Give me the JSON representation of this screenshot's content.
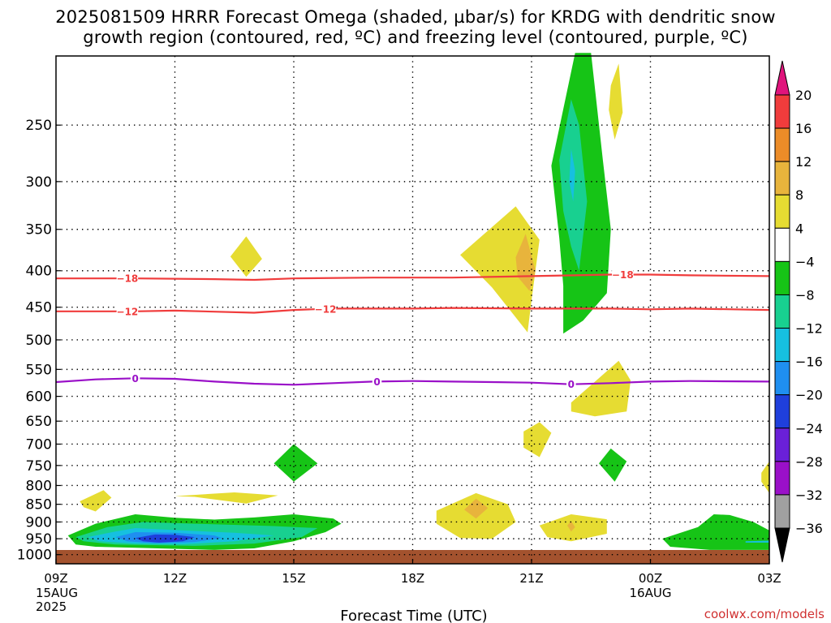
{
  "header": {
    "title_line1": "2025081509 HRRR Forecast Omega (shaded, µbar/s) for KRDG with dendritic snow",
    "title_line2": "growth region (contoured, red, ºC) and freezing level (contoured, purple, ºC)"
  },
  "footer": {
    "credit": "coolwx.com/models"
  },
  "colors": {
    "isotherm_red": "#f03c3c",
    "freezing_purple": "#9a10c8",
    "ground": "#a3522e"
  },
  "chart_data": {
    "type": "heatmap",
    "xlabel": "Forecast Time (UTC)",
    "ylabel": "",
    "x_ticks": [
      {
        "hour": 0,
        "label": "09Z",
        "sub": [
          "15AUG",
          "2025"
        ]
      },
      {
        "hour": 3,
        "label": "12Z",
        "sub": []
      },
      {
        "hour": 6,
        "label": "15Z",
        "sub": []
      },
      {
        "hour": 9,
        "label": "18Z",
        "sub": []
      },
      {
        "hour": 12,
        "label": "21Z",
        "sub": []
      },
      {
        "hour": 15,
        "label": "00Z",
        "sub": [
          "16AUG"
        ]
      },
      {
        "hour": 18,
        "label": "03Z",
        "sub": []
      }
    ],
    "xlim": [
      0,
      18
    ],
    "y_ticks": [
      250,
      300,
      350,
      400,
      450,
      500,
      550,
      600,
      650,
      700,
      750,
      800,
      850,
      900,
      950,
      1000
    ],
    "ylim_hpa": [
      200,
      1030
    ],
    "y_scale": "log-pressure",
    "colorbar": {
      "levels": [
        -36,
        -32,
        -28,
        -24,
        -20,
        -16,
        -12,
        -8,
        -4,
        4,
        8,
        12,
        16,
        20
      ],
      "labels": [
        "20",
        "16",
        "12",
        "8",
        "4",
        "−4",
        "−8",
        "−12",
        "−16",
        "−20",
        "−24",
        "−28",
        "−32",
        "−36"
      ],
      "colors": [
        "#000000",
        "#a0a0a0",
        "#9a10c8",
        "#6a20d8",
        "#1f3fdc",
        "#1f8ff0",
        "#16c0e0",
        "#18d090",
        "#16c416",
        "#ffffff",
        "#e6dc32",
        "#e8b43c",
        "#ec8c28",
        "#f03c3c",
        "#e0147c"
      ]
    },
    "contours": [
      {
        "name": "-18",
        "color": "#f03c3c",
        "label_hours": [
          1.8,
          14.3
        ],
        "points": [
          [
            0,
            410
          ],
          [
            2,
            410
          ],
          [
            4,
            411
          ],
          [
            5,
            412
          ],
          [
            6,
            410
          ],
          [
            8,
            409
          ],
          [
            10,
            409
          ],
          [
            12,
            407
          ],
          [
            14,
            405
          ],
          [
            15,
            405
          ],
          [
            16,
            406
          ],
          [
            18,
            407
          ]
        ]
      },
      {
        "name": "-12",
        "color": "#f03c3c",
        "label_hours": [
          1.8,
          6.8
        ],
        "points": [
          [
            0,
            456
          ],
          [
            2,
            456
          ],
          [
            3,
            455
          ],
          [
            5,
            458
          ],
          [
            6,
            454
          ],
          [
            7,
            452
          ],
          [
            9,
            452
          ],
          [
            10,
            451
          ],
          [
            12,
            452
          ],
          [
            14,
            452
          ],
          [
            15,
            453
          ],
          [
            16,
            452
          ],
          [
            18,
            454
          ]
        ]
      },
      {
        "name": "0",
        "color": "#9a10c8",
        "label_hours": [
          2.0,
          8.1,
          13.0
        ],
        "points": [
          [
            0,
            573
          ],
          [
            1,
            568
          ],
          [
            2,
            566
          ],
          [
            3,
            567
          ],
          [
            4,
            572
          ],
          [
            5,
            576
          ],
          [
            6,
            578
          ],
          [
            7,
            575
          ],
          [
            8,
            572
          ],
          [
            9,
            571
          ],
          [
            10,
            572
          ],
          [
            11,
            573
          ],
          [
            12,
            574
          ],
          [
            13,
            577
          ],
          [
            14,
            575
          ],
          [
            15,
            572
          ],
          [
            16,
            571
          ],
          [
            18,
            572
          ]
        ]
      }
    ],
    "regions": [
      {
        "level": "gt4",
        "points": [
          [
            10.2,
            380
          ],
          [
            11.6,
            325
          ],
          [
            12.2,
            362
          ],
          [
            12.0,
            440
          ],
          [
            11.9,
            488
          ],
          [
            11.0,
            422
          ]
        ]
      },
      {
        "level": "gt8",
        "points": [
          [
            11.6,
            383
          ],
          [
            11.85,
            355
          ],
          [
            12.1,
            400
          ],
          [
            11.95,
            427
          ],
          [
            11.65,
            408
          ]
        ]
      },
      {
        "level": "gt4",
        "points": [
          [
            4.4,
            382
          ],
          [
            4.8,
            358
          ],
          [
            5.2,
            385
          ],
          [
            4.8,
            408
          ]
        ]
      },
      {
        "level": "gt4",
        "points": [
          [
            14.0,
            220
          ],
          [
            14.2,
            205
          ],
          [
            14.3,
            240
          ],
          [
            14.1,
            262
          ],
          [
            13.95,
            238
          ]
        ]
      },
      {
        "level": "gt4",
        "points": [
          [
            13.0,
            612
          ],
          [
            14.2,
            535
          ],
          [
            14.5,
            570
          ],
          [
            14.4,
            630
          ],
          [
            13.6,
            640
          ],
          [
            13.0,
            630
          ]
        ]
      },
      {
        "level": "gt4",
        "points": [
          [
            11.8,
            672
          ],
          [
            12.2,
            652
          ],
          [
            12.5,
            675
          ],
          [
            12.2,
            730
          ],
          [
            11.8,
            708
          ]
        ]
      },
      {
        "level": "gt4",
        "points": [
          [
            0.6,
            842
          ],
          [
            1.2,
            812
          ],
          [
            1.4,
            832
          ],
          [
            1.0,
            870
          ],
          [
            0.7,
            858
          ]
        ]
      },
      {
        "level": "gt4",
        "points": [
          [
            3.0,
            828
          ],
          [
            4.5,
            818
          ],
          [
            5.6,
            826
          ],
          [
            4.8,
            848
          ],
          [
            3.5,
            830
          ]
        ]
      },
      {
        "level": "gt4",
        "points": [
          [
            9.6,
            868
          ],
          [
            10.6,
            820
          ],
          [
            11.4,
            850
          ],
          [
            11.6,
            900
          ],
          [
            11.0,
            950
          ],
          [
            10.2,
            948
          ],
          [
            9.6,
            905
          ]
        ]
      },
      {
        "level": "gt8",
        "points": [
          [
            10.3,
            865
          ],
          [
            10.6,
            835
          ],
          [
            10.9,
            860
          ],
          [
            10.6,
            890
          ]
        ]
      },
      {
        "level": "gt4",
        "points": [
          [
            12.2,
            910
          ],
          [
            13.0,
            878
          ],
          [
            13.9,
            892
          ],
          [
            13.9,
            935
          ],
          [
            13.0,
            958
          ],
          [
            12.4,
            945
          ]
        ]
      },
      {
        "level": "gt8",
        "points": [
          [
            12.9,
            910
          ],
          [
            13.0,
            898
          ],
          [
            13.1,
            915
          ],
          [
            13.0,
            928
          ]
        ]
      },
      {
        "level": "gt4",
        "points": [
          [
            17.8,
            768
          ],
          [
            18.0,
            740
          ],
          [
            18.0,
            820
          ],
          [
            17.8,
            790
          ]
        ]
      },
      {
        "level": "lt-4",
        "points": [
          [
            12.5,
            285
          ],
          [
            13.1,
            198
          ],
          [
            13.5,
            198
          ],
          [
            13.8,
            280
          ],
          [
            14.0,
            350
          ],
          [
            13.9,
            430
          ],
          [
            13.3,
            470
          ],
          [
            12.8,
            490
          ],
          [
            12.8,
            420
          ],
          [
            12.7,
            360
          ]
        ]
      },
      {
        "level": "lt-8",
        "points": [
          [
            12.7,
            280
          ],
          [
            13.0,
            230
          ],
          [
            13.2,
            250
          ],
          [
            13.4,
            320
          ],
          [
            13.2,
            400
          ],
          [
            13.0,
            370
          ],
          [
            12.8,
            330
          ]
        ]
      },
      {
        "level": "lt-12",
        "points": [
          [
            13.0,
            270
          ],
          [
            13.1,
            290
          ],
          [
            13.05,
            320
          ],
          [
            12.95,
            300
          ]
        ]
      },
      {
        "level": "lt-4",
        "points": [
          [
            5.5,
            745
          ],
          [
            6.0,
            700
          ],
          [
            6.6,
            745
          ],
          [
            6.0,
            790
          ]
        ]
      },
      {
        "level": "lt-4",
        "points": [
          [
            13.7,
            745
          ],
          [
            14.0,
            710
          ],
          [
            14.4,
            740
          ],
          [
            14.1,
            790
          ]
        ]
      },
      {
        "level": "lt-4",
        "points": [
          [
            0.3,
            940
          ],
          [
            1.0,
            905
          ],
          [
            2.0,
            878
          ],
          [
            3.0,
            888
          ],
          [
            4.0,
            893
          ],
          [
            5.0,
            887
          ],
          [
            6.0,
            878
          ],
          [
            7.0,
            890
          ],
          [
            7.2,
            905
          ],
          [
            6.8,
            930
          ],
          [
            6.0,
            958
          ],
          [
            5.0,
            980
          ],
          [
            4.0,
            985
          ],
          [
            2.0,
            978
          ],
          [
            1.0,
            975
          ],
          [
            0.5,
            968
          ]
        ]
      },
      {
        "level": "lt-8",
        "points": [
          [
            0.5,
            945
          ],
          [
            1.3,
            915
          ],
          [
            2.2,
            900
          ],
          [
            3.5,
            905
          ],
          [
            5.5,
            912
          ],
          [
            6.6,
            918
          ],
          [
            6.2,
            945
          ],
          [
            5.0,
            965
          ],
          [
            3.5,
            972
          ],
          [
            1.5,
            968
          ],
          [
            0.7,
            958
          ]
        ]
      },
      {
        "level": "lt-12",
        "points": [
          [
            0.8,
            945
          ],
          [
            1.5,
            928
          ],
          [
            2.0,
            918
          ],
          [
            3.2,
            925
          ],
          [
            4.5,
            932
          ],
          [
            5.5,
            940
          ],
          [
            4.5,
            958
          ],
          [
            3.2,
            967
          ],
          [
            2.0,
            965
          ],
          [
            1.1,
            958
          ]
        ]
      },
      {
        "level": "lt-16",
        "points": [
          [
            1.5,
            945
          ],
          [
            2.0,
            930
          ],
          [
            3.0,
            932
          ],
          [
            4.0,
            940
          ],
          [
            4.2,
            948
          ],
          [
            3.5,
            960
          ],
          [
            2.5,
            964
          ],
          [
            1.8,
            958
          ]
        ]
      },
      {
        "level": "lt-20",
        "points": [
          [
            2.0,
            948
          ],
          [
            2.5,
            937
          ],
          [
            3.0,
            938
          ],
          [
            3.5,
            945
          ],
          [
            3.2,
            958
          ],
          [
            2.6,
            962
          ],
          [
            2.2,
            958
          ]
        ]
      },
      {
        "level": "lt-24",
        "points": [
          [
            2.95,
            950
          ],
          [
            3.05,
            947
          ],
          [
            3.1,
            952
          ],
          [
            3.0,
            955
          ]
        ]
      },
      {
        "level": "lt-4",
        "points": [
          [
            15.3,
            950
          ],
          [
            16.2,
            915
          ],
          [
            16.6,
            878
          ],
          [
            17.0,
            880
          ],
          [
            17.6,
            900
          ],
          [
            18.0,
            925
          ],
          [
            18.0,
            985
          ],
          [
            16.5,
            985
          ],
          [
            15.5,
            975
          ]
        ]
      },
      {
        "level": "lt-12",
        "points": [
          [
            17.4,
            958
          ],
          [
            18.0,
            956
          ],
          [
            18.0,
            962
          ],
          [
            17.4,
            962
          ]
        ]
      }
    ]
  }
}
